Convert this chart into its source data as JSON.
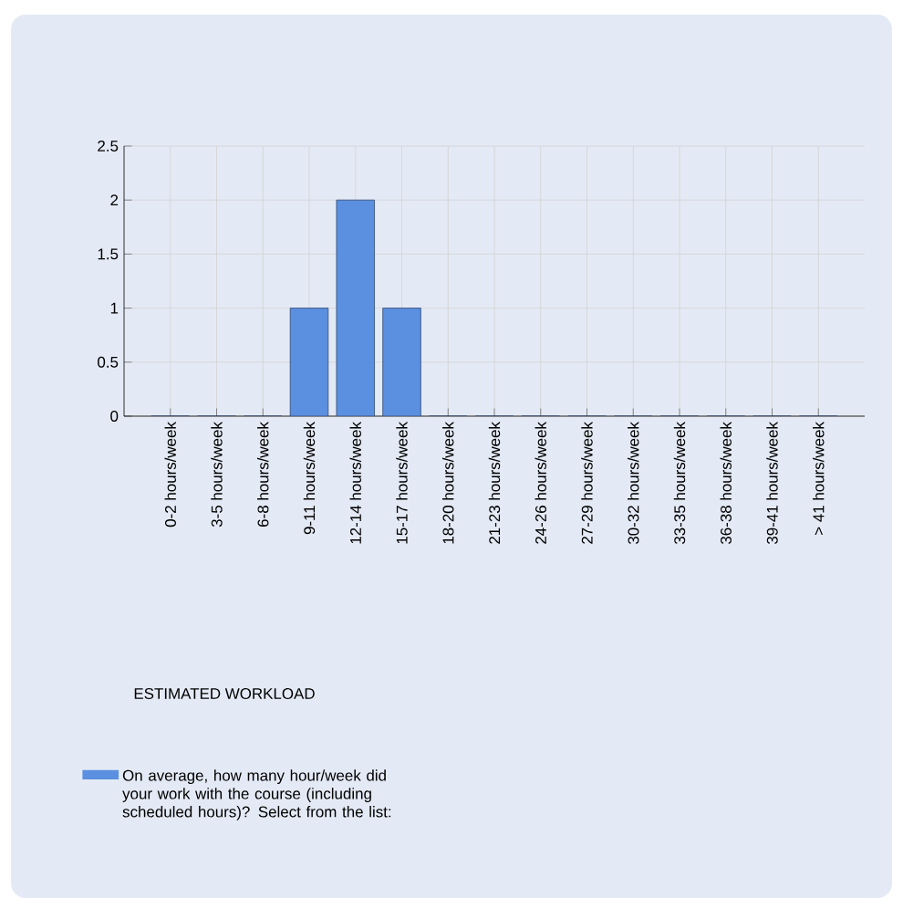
{
  "chart_data": {
    "type": "bar",
    "annotations": [
      "ESTIMATED WORKLOAD"
    ],
    "categories": [
      "0-2 hours/week",
      "3-5 hours/week",
      "6-8 hours/week",
      "9-11 hours/week",
      "12-14 hours/week",
      "15-17 hours/week",
      "18-20 hours/week",
      "21-23 hours/week",
      "24-26 hours/week",
      "27-29 hours/week",
      "30-32 hours/week",
      "33-35 hours/week",
      "36-38 hours/week",
      "39-41 hours/week",
      "> 41 hours/week"
    ],
    "series": [
      {
        "name": "On average, how many hour/week did your work with the course (including scheduled hours)? Select from the list:",
        "color": "#5b8fe0",
        "values": [
          0,
          0,
          0,
          1,
          2,
          1,
          0,
          0,
          0,
          0,
          0,
          0,
          0,
          0,
          0
        ]
      }
    ],
    "ylim": [
      0,
      2.5
    ],
    "yticks": [
      0,
      0.5,
      1,
      1.5,
      2,
      2.5
    ],
    "grid": true,
    "legend": "bottom left"
  }
}
